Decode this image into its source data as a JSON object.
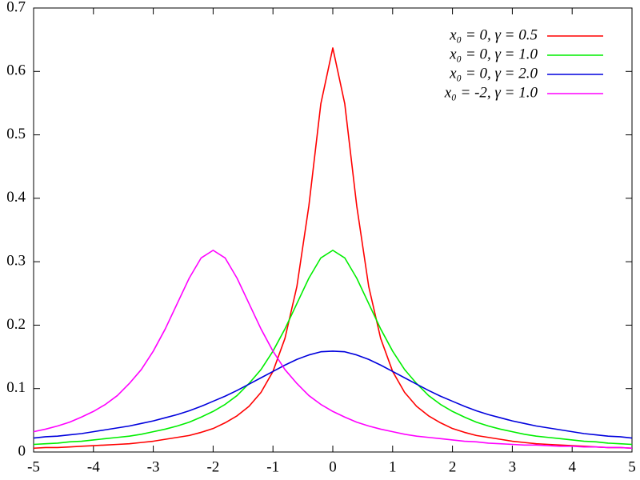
{
  "chart_data": {
    "type": "line",
    "x": [
      -5,
      -4.8,
      -4.6,
      -4.4,
      -4.2,
      -4,
      -3.8,
      -3.6,
      -3.4,
      -3.2,
      -3,
      -2.8,
      -2.6,
      -2.4,
      -2.2,
      -2,
      -1.8,
      -1.6,
      -1.4,
      -1.2,
      -1,
      -0.8,
      -0.6,
      -0.4,
      -0.2,
      0,
      0.2,
      0.4,
      0.6,
      0.8,
      1,
      1.2,
      1.4,
      1.6,
      1.8,
      2,
      2.2,
      2.4,
      2.6,
      2.8,
      3,
      3.2,
      3.4,
      3.6,
      3.8,
      4,
      4.2,
      4.4,
      4.6,
      4.8,
      5
    ],
    "series": [
      {
        "name": "x₀ =  0, γ = 0.5",
        "color": "#ff0000",
        "values": [
          0.006,
          0.007,
          0.007,
          0.008,
          0.009,
          0.01,
          0.011,
          0.012,
          0.013,
          0.015,
          0.017,
          0.02,
          0.023,
          0.026,
          0.031,
          0.037,
          0.046,
          0.057,
          0.072,
          0.094,
          0.127,
          0.179,
          0.261,
          0.388,
          0.549,
          0.637,
          0.549,
          0.388,
          0.261,
          0.179,
          0.127,
          0.094,
          0.072,
          0.057,
          0.046,
          0.037,
          0.031,
          0.026,
          0.023,
          0.02,
          0.017,
          0.015,
          0.013,
          0.012,
          0.011,
          0.01,
          0.009,
          0.008,
          0.007,
          0.007,
          0.006
        ]
      },
      {
        "name": "x₀ =  0, γ = 1.0",
        "color": "#00ee00",
        "values": [
          0.012,
          0.013,
          0.014,
          0.016,
          0.017,
          0.019,
          0.021,
          0.023,
          0.025,
          0.028,
          0.032,
          0.036,
          0.041,
          0.047,
          0.055,
          0.064,
          0.075,
          0.089,
          0.108,
          0.13,
          0.159,
          0.194,
          0.234,
          0.274,
          0.306,
          0.318,
          0.306,
          0.274,
          0.234,
          0.194,
          0.159,
          0.13,
          0.108,
          0.089,
          0.075,
          0.064,
          0.055,
          0.047,
          0.041,
          0.036,
          0.032,
          0.028,
          0.025,
          0.023,
          0.021,
          0.019,
          0.017,
          0.016,
          0.014,
          0.013,
          0.012
        ]
      },
      {
        "name": "x₀ =  0, γ = 2.0",
        "color": "#0000dd",
        "values": [
          0.022,
          0.024,
          0.025,
          0.027,
          0.029,
          0.032,
          0.035,
          0.038,
          0.041,
          0.045,
          0.049,
          0.054,
          0.059,
          0.065,
          0.072,
          0.08,
          0.088,
          0.097,
          0.107,
          0.117,
          0.127,
          0.137,
          0.146,
          0.153,
          0.158,
          0.159,
          0.158,
          0.153,
          0.146,
          0.137,
          0.127,
          0.117,
          0.107,
          0.097,
          0.088,
          0.08,
          0.072,
          0.065,
          0.059,
          0.054,
          0.049,
          0.045,
          0.041,
          0.038,
          0.035,
          0.032,
          0.029,
          0.027,
          0.025,
          0.024,
          0.022
        ]
      },
      {
        "name": "x₀ = -2, γ = 1.0",
        "color": "#ff00ff",
        "values": [
          0.032,
          0.036,
          0.041,
          0.047,
          0.055,
          0.064,
          0.075,
          0.089,
          0.108,
          0.13,
          0.159,
          0.194,
          0.234,
          0.274,
          0.306,
          0.318,
          0.306,
          0.274,
          0.234,
          0.194,
          0.159,
          0.13,
          0.108,
          0.089,
          0.075,
          0.064,
          0.055,
          0.047,
          0.041,
          0.036,
          0.032,
          0.028,
          0.025,
          0.023,
          0.021,
          0.019,
          0.017,
          0.016,
          0.014,
          0.013,
          0.012,
          0.011,
          0.011,
          0.01,
          0.009,
          0.009,
          0.008,
          0.008,
          0.007,
          0.007,
          0.006
        ]
      }
    ],
    "xlim": [
      -5,
      5
    ],
    "xticks": [
      -5,
      -4,
      -3,
      -2,
      -1,
      0,
      1,
      2,
      3,
      4,
      5
    ],
    "ylim": [
      0,
      0.7
    ],
    "yticks": [
      0,
      0.1,
      0.2,
      0.3,
      0.4,
      0.5,
      0.6,
      0.7
    ],
    "grid": false,
    "legend": "top-right"
  }
}
